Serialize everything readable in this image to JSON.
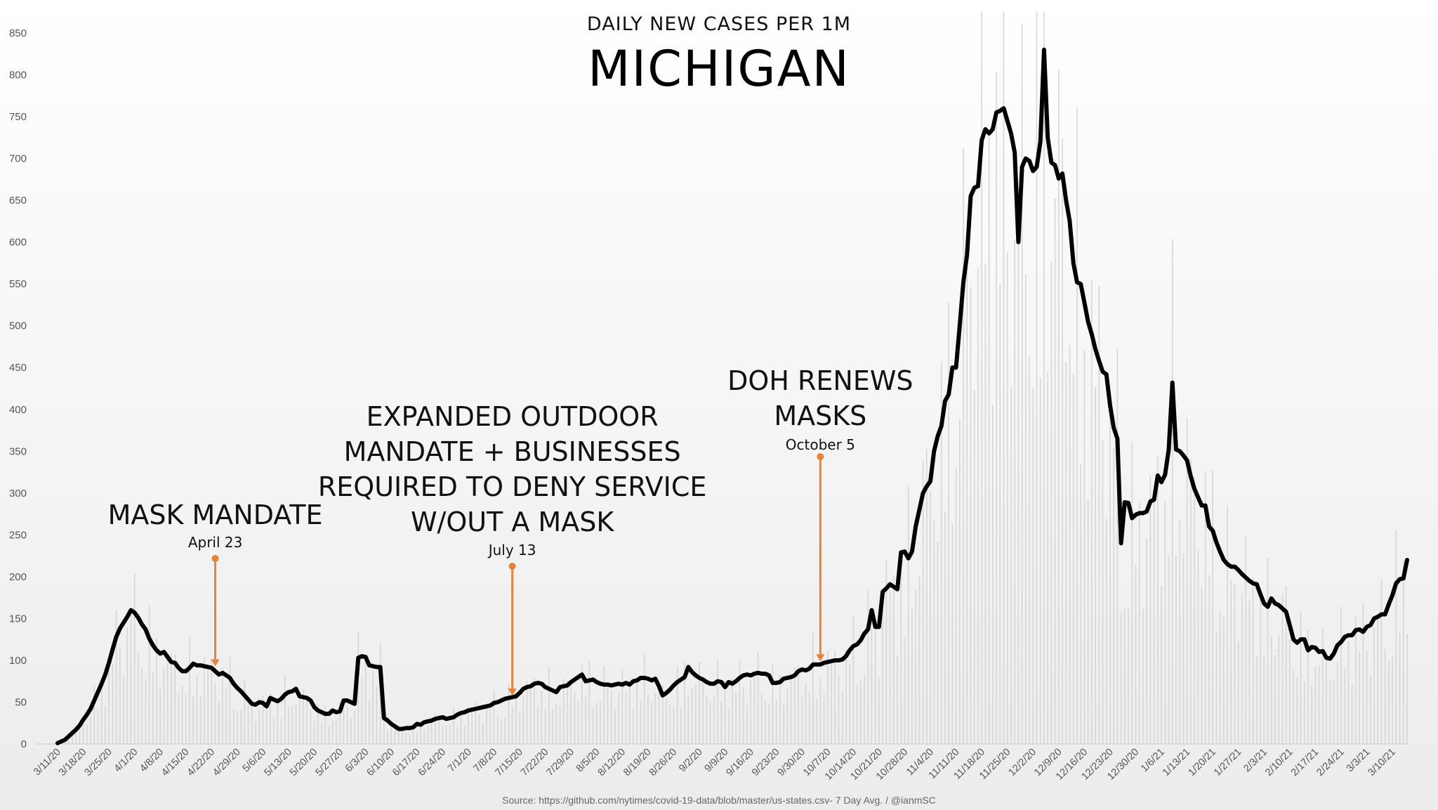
{
  "chart_data": {
    "type": "line",
    "subtitle": "DAILY NEW CASES PER 1M",
    "title": "MICHIGAN",
    "source": "Source: https://github.com/nytimes/covid-19-data/blob/master/us-states.csv- 7 Day Avg. / @ianmSC",
    "ylim": [
      0,
      850
    ],
    "yticks": [
      0,
      50,
      100,
      150,
      200,
      250,
      300,
      350,
      400,
      450,
      500,
      550,
      600,
      650,
      700,
      750,
      800,
      850
    ],
    "xticks": [
      "3/11/20",
      "3/18/20",
      "3/25/20",
      "4/1/20",
      "4/8/20",
      "4/15/20",
      "4/22/20",
      "4/29/20",
      "5/6/20",
      "5/13/20",
      "5/20/20",
      "5/27/20",
      "6/3/20",
      "6/10/20",
      "6/17/20",
      "6/24/20",
      "7/1/20",
      "7/8/20",
      "7/15/20",
      "7/22/20",
      "7/29/20",
      "8/5/20",
      "8/12/20",
      "8/19/20",
      "8/26/20",
      "9/2/20",
      "9/9/20",
      "9/16/20",
      "9/23/20",
      "9/30/20",
      "10/7/20",
      "10/14/20",
      "10/21/20",
      "10/28/20",
      "11/4/20",
      "11/11/20",
      "11/18/20",
      "11/25/20",
      "12/2/20",
      "12/9/20",
      "12/16/20",
      "12/23/20",
      "12/30/20",
      "1/6/21",
      "1/13/21",
      "1/20/21",
      "1/27/21",
      "2/3/21",
      "2/10/21",
      "2/17/21",
      "2/24/21",
      "3/3/21",
      "3/10/21"
    ],
    "x_start": "3/11/20",
    "series": [
      {
        "values": [
          1,
          3,
          5,
          9,
          13,
          17,
          22,
          29,
          35,
          42,
          52,
          62,
          72,
          83,
          97,
          113,
          128,
          138,
          145,
          152,
          160,
          157,
          151,
          143,
          137,
          126,
          118,
          112,
          108,
          110,
          104,
          98,
          97,
          91,
          87,
          87,
          91,
          96,
          94,
          94,
          93,
          92,
          91,
          87,
          83,
          85,
          82,
          79,
          72,
          67,
          63,
          58,
          53,
          48,
          47,
          50,
          49,
          45,
          55,
          53,
          51,
          54,
          59,
          62,
          63,
          66,
          57,
          56,
          55,
          52,
          44,
          40,
          38,
          36,
          36,
          40,
          38,
          39,
          52,
          52,
          50,
          48,
          103,
          105,
          104,
          94,
          93,
          92,
          92,
          31,
          28,
          24,
          21,
          18,
          18,
          19,
          19,
          20,
          24,
          23,
          26,
          27,
          28,
          30,
          31,
          32,
          30,
          31,
          32,
          35,
          37,
          38,
          40,
          41,
          42,
          43,
          44,
          45,
          46,
          49,
          50,
          52,
          54,
          55,
          56,
          57,
          61,
          66,
          68,
          69,
          72,
          73,
          72,
          68,
          66,
          64,
          62,
          68,
          69,
          70,
          74,
          77,
          80,
          83,
          75,
          76,
          77,
          74,
          72,
          71,
          71,
          70,
          71,
          72,
          71,
          73,
          71,
          75,
          76,
          79,
          79,
          78,
          76,
          78,
          69,
          58,
          61,
          65,
          70,
          74,
          77,
          80,
          92,
          86,
          82,
          79,
          77,
          74,
          72,
          72,
          75,
          74,
          68,
          74,
          72,
          75,
          79,
          82,
          83,
          82,
          84,
          85,
          84,
          84,
          82,
          73,
          73,
          74,
          78,
          79,
          80,
          82,
          87,
          89,
          88,
          90,
          95,
          95,
          95,
          97,
          98,
          99,
          100,
          100,
          101,
          105,
          112,
          117,
          119,
          124,
          132,
          137,
          160,
          140,
          140,
          182,
          186,
          191,
          188,
          185,
          229,
          230,
          222,
          230,
          260,
          280,
          300,
          308,
          314,
          350,
          368,
          380,
          410,
          418,
          450,
          450,
          500,
          552,
          585,
          655,
          665,
          667,
          722,
          735,
          730,
          735,
          755,
          757,
          760,
          745,
          730,
          707,
          600,
          690,
          700,
          697,
          685,
          690,
          720,
          830,
          725,
          695,
          692,
          676,
          682,
          650,
          625,
          575,
          552,
          550,
          528,
          505,
          490,
          472,
          458,
          445,
          442,
          405,
          378,
          365,
          240,
          289,
          288,
          270,
          274,
          276,
          276,
          278,
          290,
          292,
          321,
          313,
          322,
          352,
          432,
          352,
          350,
          345,
          339,
          320,
          305,
          295,
          285,
          285,
          260,
          255,
          241,
          230,
          220,
          215,
          212,
          212,
          208,
          203,
          199,
          195,
          192,
          191,
          179,
          168,
          164,
          174,
          168,
          166,
          162,
          158,
          142,
          125,
          121,
          125,
          125,
          112,
          116,
          115,
          110,
          111,
          103,
          102,
          108,
          118,
          122,
          128,
          130,
          130,
          136,
          137,
          134,
          140,
          142,
          150,
          152,
          155,
          155,
          167,
          178,
          192,
          197,
          198,
          220
        ]
      }
    ],
    "annotations": [
      {
        "label_lines": [
          "MASK MANDATE"
        ],
        "date_label": "April 23",
        "x_index": 43,
        "y": 92
      },
      {
        "label_lines": [
          "EXPANDED OUTDOOR",
          "MANDATE + BUSINESSES",
          "REQUIRED TO DENY SERVICE",
          "W/OUT A MASK"
        ],
        "date_label": "July 13",
        "x_index": 124,
        "y": 57
      },
      {
        "label_lines": [
          "DOH RENEWS",
          "MASKS"
        ],
        "date_label": "October 5",
        "x_index": 208,
        "y": 98
      }
    ],
    "colors": {
      "line": "#000000",
      "annotation": "#e8823a",
      "bars": "#d6d6d6",
      "axis": "#c8c8c8"
    },
    "grid": false
  }
}
